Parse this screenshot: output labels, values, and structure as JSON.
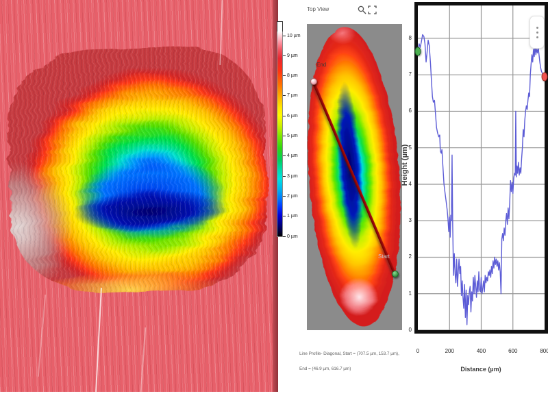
{
  "panel_3d": {
    "description": "3D surface topography of wear scar",
    "surface_color": "#e7606a",
    "edge_color": "#8f3139"
  },
  "colorbar": {
    "labels": [
      "10 µm",
      "9 µm",
      "8 µm",
      "7 µm",
      "6 µm",
      "5 µm",
      "4 µm",
      "3 µm",
      "2 µm",
      "1 µm",
      "0 µm"
    ]
  },
  "topview": {
    "title": "Top View",
    "start_label": "Start",
    "end_label": "End",
    "caption": "Line Profile- Diagonal, Start = (707.5 µm, 153.7 µm), End = (46.9 µm, 616.7 µm)"
  },
  "chart_data": {
    "type": "line",
    "title": "",
    "xlabel": "Distance (µm)",
    "ylabel": "Height (µm)",
    "xlim": [
      0,
      800
    ],
    "ylim": [
      0,
      8.9
    ],
    "xticks": [
      0,
      200,
      400,
      600,
      800
    ],
    "yticks": [
      0,
      1,
      2,
      3,
      4,
      5,
      6,
      7,
      8
    ],
    "grid": true,
    "legend": "none",
    "line_color": "#5c5cd6",
    "grid_color": "#969696",
    "start_marker": {
      "color": "#4caf50",
      "border": "#1e6329",
      "x": 0,
      "y": 7.65
    },
    "end_marker": {
      "color": "#ef5350",
      "border": "#a03028",
      "x": 800,
      "y": 6.95
    },
    "x": [
      0,
      8,
      15,
      22,
      30,
      38,
      45,
      52,
      58,
      65,
      72,
      80,
      85,
      92,
      98,
      105,
      112,
      118,
      125,
      132,
      138,
      142,
      148,
      152,
      158,
      165,
      172,
      178,
      185,
      190,
      195,
      200,
      204,
      208,
      212,
      216,
      220,
      225,
      230,
      235,
      240,
      245,
      250,
      255,
      260,
      265,
      270,
      275,
      280,
      285,
      290,
      295,
      300,
      305,
      310,
      315,
      320,
      325,
      330,
      335,
      340,
      345,
      350,
      355,
      360,
      365,
      370,
      375,
      380,
      385,
      390,
      395,
      400,
      405,
      410,
      415,
      420,
      425,
      430,
      435,
      440,
      445,
      450,
      455,
      460,
      465,
      470,
      475,
      480,
      485,
      490,
      495,
      500,
      505,
      510,
      515,
      520,
      525,
      530,
      535,
      540,
      545,
      550,
      555,
      560,
      565,
      570,
      575,
      580,
      585,
      590,
      595,
      600,
      605,
      610,
      615,
      618,
      622,
      626,
      630,
      635,
      640,
      645,
      650,
      655,
      660,
      665,
      670,
      675,
      680,
      685,
      690,
      695,
      700,
      705,
      710,
      715,
      720,
      725,
      730,
      735,
      740,
      745,
      750,
      755,
      760,
      765,
      770,
      775,
      780,
      785,
      790,
      795,
      800
    ],
    "y": [
      7.65,
      7.85,
      7.75,
      7.9,
      8.1,
      8.05,
      7.85,
      7.35,
      7.6,
      7.95,
      7.8,
      7.3,
      6.9,
      6.4,
      6.25,
      6.3,
      5.9,
      5.55,
      5.4,
      5.3,
      5.35,
      4.9,
      4.85,
      4.95,
      4.5,
      4.0,
      3.75,
      3.55,
      3.3,
      3.05,
      2.7,
      3.1,
      2.55,
      3.15,
      3.0,
      4.8,
      2.9,
      1.5,
      2.1,
      1.55,
      1.3,
      1.95,
      1.2,
      1.6,
      1.95,
      1.55,
      1.75,
      0.95,
      1.35,
      0.9,
      0.6,
      1.25,
      0.35,
      1.1,
      0.15,
      0.95,
      0.7,
      1.05,
      1.2,
      0.5,
      1.05,
      0.8,
      1.45,
      1.0,
      1.5,
      1.2,
      0.9,
      1.35,
      1.05,
      1.6,
      1.1,
      1.05,
      1.45,
      1.0,
      1.15,
      1.35,
      1.05,
      1.5,
      1.3,
      1.45,
      1.35,
      1.6,
      1.5,
      1.65,
      1.45,
      1.75,
      1.55,
      1.9,
      1.7,
      2.0,
      1.8,
      1.95,
      1.75,
      1.9,
      1.65,
      1.85,
      1.6,
      1.0,
      2.5,
      2.65,
      2.45,
      2.8,
      2.6,
      3.0,
      3.2,
      2.9,
      3.35,
      3.05,
      3.5,
      4.1,
      3.8,
      4.05,
      3.75,
      4.15,
      4.3,
      4.25,
      6.0,
      4.2,
      4.5,
      4.3,
      4.6,
      4.25,
      4.45,
      4.3,
      4.7,
      5.0,
      5.5,
      5.3,
      5.75,
      6.0,
      6.15,
      6.05,
      6.3,
      6.5,
      6.4,
      7.0,
      7.3,
      7.55,
      7.35,
      7.7,
      7.5,
      7.8,
      7.55,
      7.7,
      7.6,
      7.75,
      7.55,
      7.35,
      7.2,
      7.1,
      7.05,
      7.0,
      6.95,
      6.95
    ]
  }
}
